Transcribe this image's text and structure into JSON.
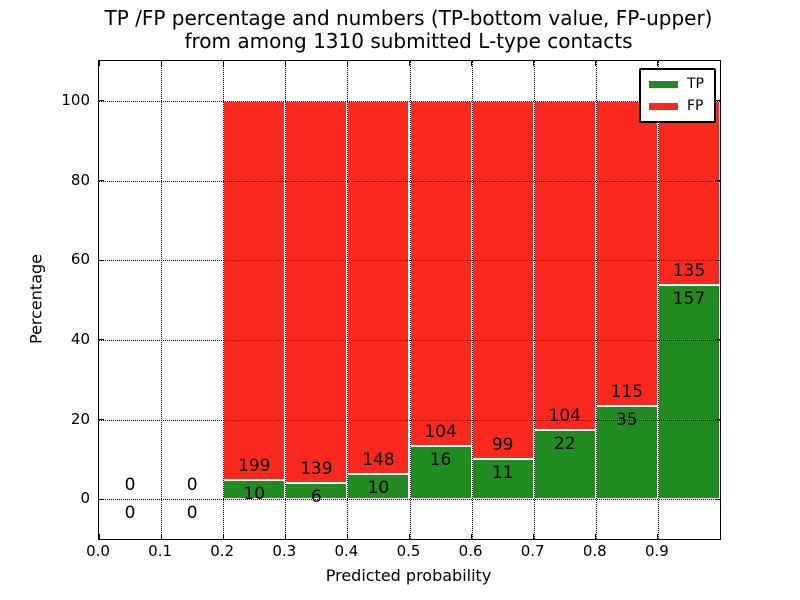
{
  "title": {
    "line1": "TP /FP percentage and numbers (TP-bottom value, FP-upper)",
    "line2": "from among 1310 submitted L-type contacts"
  },
  "chart_data": {
    "type": "bar",
    "stacked": true,
    "normalized_to_percent": true,
    "title": "TP /FP percentage and numbers (TP-bottom value, FP-upper)\nfrom among 1310 submitted L-type contacts",
    "xlabel": "Predicted probability",
    "ylabel": "Percentage",
    "total_contacts": 1310,
    "xlim": [
      0.0,
      1.0
    ],
    "ylim": [
      -10,
      110
    ],
    "bin_width": 0.1,
    "bin_starts": [
      0.0,
      0.1,
      0.2,
      0.3,
      0.4,
      0.5,
      0.6,
      0.7,
      0.8,
      0.9
    ],
    "xtick_labels": [
      "0.0",
      "0.1",
      "0.2",
      "0.3",
      "0.4",
      "0.5",
      "0.6",
      "0.7",
      "0.8",
      "0.9"
    ],
    "xtick_values": [
      0.0,
      0.1,
      0.2,
      0.3,
      0.4,
      0.5,
      0.6,
      0.7,
      0.8,
      0.9
    ],
    "ytick_labels": [
      "0",
      "20",
      "40",
      "60",
      "80",
      "100"
    ],
    "ytick_values": [
      0,
      20,
      40,
      60,
      80,
      100
    ],
    "series": [
      {
        "name": "TP",
        "counts": [
          0,
          0,
          10,
          6,
          10,
          16,
          11,
          22,
          35,
          157
        ]
      },
      {
        "name": "FP",
        "counts": [
          0,
          0,
          199,
          139,
          148,
          104,
          99,
          104,
          115,
          135
        ]
      }
    ],
    "grid": true,
    "grid_style": "dotted",
    "colors": {
      "tp": "#218a21",
      "fp": "#f92a1d",
      "bar_edge": "#ffffff",
      "grid": "#000000"
    },
    "legend": {
      "position": "upper right",
      "entries": [
        "TP",
        "FP"
      ]
    }
  }
}
